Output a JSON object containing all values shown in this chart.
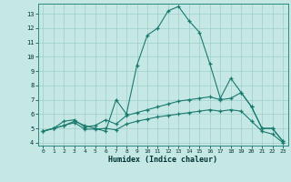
{
  "xlabel": "Humidex (Indice chaleur)",
  "xlim": [
    -0.5,
    23.5
  ],
  "ylim": [
    3.8,
    13.7
  ],
  "yticks": [
    4,
    5,
    6,
    7,
    8,
    9,
    10,
    11,
    12,
    13
  ],
  "xticks": [
    0,
    1,
    2,
    3,
    4,
    5,
    6,
    7,
    8,
    9,
    10,
    11,
    12,
    13,
    14,
    15,
    16,
    17,
    18,
    19,
    20,
    21,
    22,
    23
  ],
  "background_color": "#c5e8e5",
  "grid_color": "#9ecfcc",
  "line_color": "#1a7a6e",
  "line1_x": [
    0,
    1,
    2,
    3,
    4,
    5,
    6,
    7,
    8,
    9,
    10,
    11,
    12,
    13,
    14,
    15,
    16,
    17,
    18,
    19,
    20,
    21,
    22,
    23
  ],
  "line1_y": [
    4.8,
    5.0,
    5.2,
    5.5,
    5.2,
    5.0,
    4.8,
    7.0,
    6.0,
    9.4,
    11.5,
    12.0,
    13.2,
    13.5,
    12.5,
    11.7,
    9.5,
    7.1,
    8.5,
    7.5,
    6.5,
    5.0,
    5.0,
    4.1
  ],
  "line2_x": [
    0,
    1,
    2,
    3,
    4,
    5,
    6,
    7,
    8,
    9,
    10,
    11,
    12,
    13,
    14,
    15,
    16,
    17,
    18,
    19,
    20,
    21,
    22,
    23
  ],
  "line2_y": [
    4.8,
    5.0,
    5.5,
    5.6,
    5.1,
    5.2,
    5.6,
    5.3,
    5.9,
    6.1,
    6.3,
    6.5,
    6.7,
    6.9,
    7.0,
    7.1,
    7.2,
    7.0,
    7.1,
    7.5,
    6.5,
    5.0,
    5.0,
    4.1
  ],
  "line3_x": [
    0,
    1,
    2,
    3,
    4,
    5,
    6,
    7,
    8,
    9,
    10,
    11,
    12,
    13,
    14,
    15,
    16,
    17,
    18,
    19,
    20,
    21,
    22,
    23
  ],
  "line3_y": [
    4.8,
    5.0,
    5.2,
    5.4,
    4.95,
    4.95,
    5.0,
    4.9,
    5.3,
    5.5,
    5.65,
    5.8,
    5.9,
    6.0,
    6.1,
    6.2,
    6.3,
    6.2,
    6.3,
    6.2,
    5.5,
    4.8,
    4.6,
    4.0
  ]
}
